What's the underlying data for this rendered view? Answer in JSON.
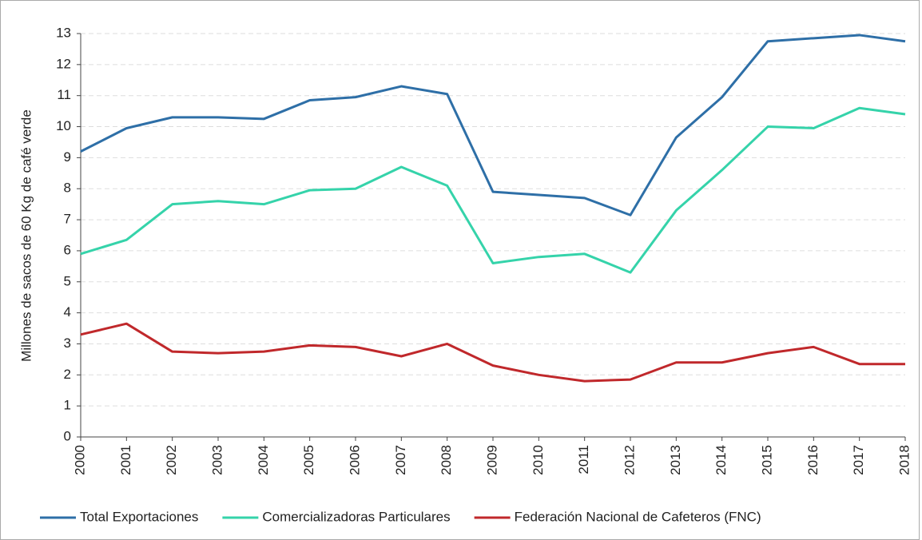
{
  "chart_data": {
    "type": "line",
    "y_label": "Millones de sacos de 60 Kg de café verde",
    "categories": [
      "2000",
      "2001",
      "2002",
      "2003",
      "2004",
      "2005",
      "2006",
      "2007",
      "2008",
      "2009",
      "2010",
      "2011",
      "2012",
      "2013",
      "2014",
      "2015",
      "2016",
      "2017",
      "2018"
    ],
    "series": [
      {
        "name": "Total Exportaciones",
        "color": "#2e6fa7",
        "values": [
          9.2,
          9.95,
          10.3,
          10.3,
          10.25,
          10.85,
          10.95,
          11.3,
          11.05,
          7.9,
          7.8,
          7.7,
          7.15,
          9.65,
          10.95,
          12.75,
          12.85,
          12.95,
          12.75
        ]
      },
      {
        "name": "Comercializadoras Particulares",
        "color": "#35d3aa",
        "values": [
          5.9,
          6.35,
          7.5,
          7.6,
          7.5,
          7.95,
          8.0,
          8.7,
          8.1,
          5.6,
          5.8,
          5.9,
          5.3,
          7.3,
          8.6,
          10.0,
          9.95,
          10.6,
          10.4
        ]
      },
      {
        "name": "Federación Nacional de Cafeteros (FNC)",
        "color": "#c0282b",
        "values": [
          3.3,
          3.65,
          2.75,
          2.7,
          2.75,
          2.95,
          2.9,
          2.6,
          3.0,
          2.3,
          2.0,
          1.8,
          1.85,
          2.4,
          2.4,
          2.7,
          2.9,
          2.35,
          2.35
        ]
      }
    ],
    "ylim": [
      0,
      13
    ],
    "yticks": [
      0,
      1,
      2,
      3,
      4,
      5,
      6,
      7,
      8,
      9,
      10,
      11,
      12,
      13
    ],
    "grid": true,
    "legend": "bottom"
  }
}
